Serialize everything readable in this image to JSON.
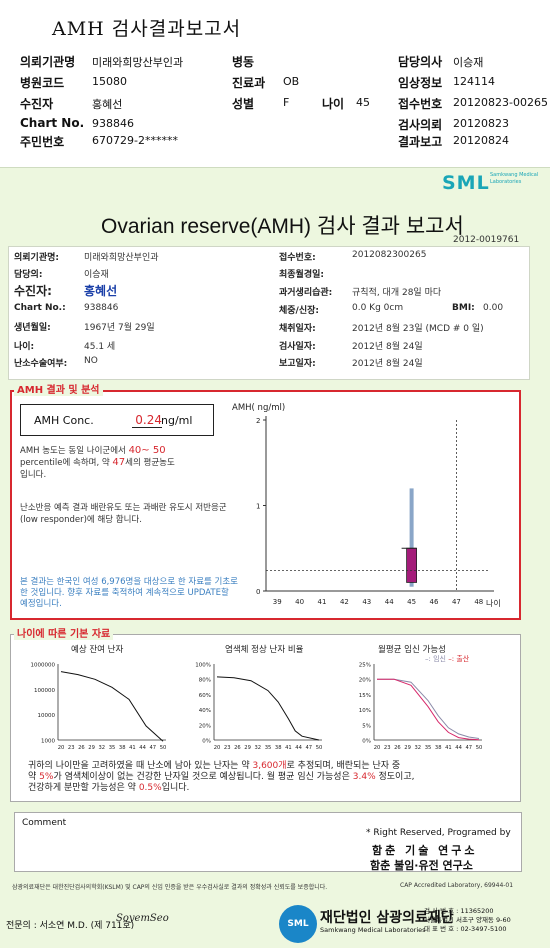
{
  "header": {
    "title": "AMH 검사결과보고서",
    "rows": [
      {
        "l1": "의뢰기관명",
        "v1": "미래와희망산부인과",
        "l2": "병동",
        "v2": "",
        "l3": "담당의사",
        "v3": "이승재"
      },
      {
        "l1": "병원코드",
        "v1": "15080",
        "l2": "진료과",
        "v2": "OB",
        "l3": "임상정보",
        "v3": "124114"
      },
      {
        "l1": "수진자",
        "v1": "홍혜선",
        "l2": "성별",
        "v2": "F",
        "l2b": "나이",
        "v2b": "45",
        "l3": "접수번호",
        "v3": "20120823-00265"
      },
      {
        "l1": "Chart No.",
        "v1": "938846",
        "l2": "",
        "v2": "",
        "l3": "검사의뢰",
        "v3": "20120823"
      },
      {
        "l1": "주민번호",
        "v1": "670729-2******",
        "l2": "",
        "v2": "",
        "l3": "결과보고",
        "v3": "20120824"
      }
    ]
  },
  "sheet": {
    "logo": "SML",
    "logo_sub": "Samkwang Medical Laboratories",
    "title": "Ovarian reserve(AMH) 검사 결과 보고서",
    "report_no": "2012-0019761"
  },
  "info": {
    "left": [
      {
        "label": "의뢰기관명:",
        "value": "미래와희망산부인과"
      },
      {
        "label": "담당의:",
        "value": "이승재"
      },
      {
        "label": "수진자:",
        "value": "홍혜선"
      },
      {
        "label": "Chart No.:",
        "value": "938846"
      },
      {
        "label": "생년월일:",
        "value": "1967년 7월 29일"
      },
      {
        "label": "나이:",
        "value": "45.1 세"
      },
      {
        "label": "난소수술여부:",
        "value": "NO"
      }
    ],
    "right": [
      {
        "label": "접수번호:",
        "value": "2012082300265"
      },
      {
        "label": "최종월경일:",
        "value": ""
      },
      {
        "label": "과거생리습관:",
        "value": "규칙적, 대개   28일 마다"
      },
      {
        "label": "체중/신장:",
        "value": "0.0  Kg        0cm"
      },
      {
        "label": "채취일자:",
        "value": "2012년 8월 23일   (MCD # 0 일)"
      },
      {
        "label": "검사일자:",
        "value": "2012년 8월 24일"
      },
      {
        "label": "보고일자:",
        "value": "2012년 8월 24일"
      }
    ],
    "bmi_label": "BMI:",
    "bmi_value": "0.00"
  },
  "amh": {
    "section_label": "AMH 결과 및 분석",
    "conc_label": "AMH Conc.",
    "conc_value": "0.24",
    "conc_unit": "ng/ml",
    "pcl_text1": "AMH 농도는 동일 나이군에서",
    "pcl_range": "40~ 50",
    "pcl_text2": "percentile에 속하며, 약",
    "pcl_age": "47",
    "pcl_text3": "세의 평균농도",
    "pcl_text4": "입니다.",
    "resp_text": "난소반응 예측 결과 배란유도 또는 과배란 유도시 저반응군 (low responder)에 해당 합니다.",
    "notice_text": "본 결과는 한국인 여성 6,976명을 대상으로 한 자료를 기초로 한 것입니다. 향후 자료를 축적하여 계속적으로 UPDATE할 예정입니다."
  },
  "age_section": {
    "label": "나이에 따른 기본 자료",
    "c1_title": "예상 잔여 난자",
    "c2_title": "염색체 정상 난자 비율",
    "c3_title": "월평균 임신 가능성",
    "legend_a": "임신",
    "legend_b": "출산",
    "summary_1": "귀하의 나이만을 고려하였을 때 난소에 남아 있는 난자는 약",
    "summary_eggs": "3,600개",
    "summary_2": "로 추정되며, 배란되는 난자 중",
    "summary_3": "약",
    "summary_pct1": "5%",
    "summary_4": "가 염색체이상이 없는 건강한 난자일 것으로 예상됩니다. 월 평균 임신 가능성은",
    "summary_pct2": "3.4%",
    "summary_5": "정도이고,",
    "summary_6": "건강하게 분만할 가능성은 약",
    "summary_pct3": "0.5%",
    "summary_7": "입니다."
  },
  "comment": {
    "label": "Comment",
    "rights": "* Right Reserved, Programed by",
    "lab1": "함춘 기술 연구소",
    "lab2": "함춘 불임·유전 연구소"
  },
  "footer": {
    "cert": "삼광의료재단은 대한진단검사의학회(KSLM) 및 CAP의 신임 인증을 받은 우수검사실로 결과의 정확성과 신뢰도를 보증합니다.",
    "cap": "CAP  Accredited  Laboratory,  69944-01",
    "doctor": "전문의 : 서소연 M.D. (제 711호)",
    "signature": "SoyemSeo",
    "foot_logo": "SML",
    "foot_name": "재단법인 삼광의료재단",
    "foot_name_en": "Samkwang Medical Laboratories",
    "contact_1": "검 사 번 호 : 11365200",
    "contact_2": "서울특별시 서초구 양재동 9-60",
    "contact_3": "대 표 번 호 : 02-3497-5100"
  },
  "chart_data": [
    {
      "type": "scatter",
      "title": "",
      "ylabel": "AMH( ng/ml)",
      "xlabel": "나이",
      "x_ticks": [
        39,
        40,
        41,
        42,
        43,
        44,
        45,
        46,
        47,
        48
      ],
      "y_ticks": [
        0,
        1,
        2
      ],
      "ylim": [
        0,
        2
      ],
      "range_bar": {
        "x": 45,
        "low": 0.05,
        "high": 1.2
      },
      "box": {
        "x": 45,
        "low": 0.1,
        "high": 0.5
      },
      "patient": {
        "age": 45,
        "amh": 0.24
      },
      "equivalent_age": 47
    },
    {
      "type": "line",
      "title": "예상 잔여 난자",
      "y_ticks": [
        "1000000",
        "100000",
        "10000",
        "1000"
      ],
      "x_ticks": [
        20,
        23,
        26,
        29,
        32,
        35,
        38,
        41,
        44,
        47,
        50
      ],
      "log_scale": true,
      "x": [
        20,
        25,
        30,
        35,
        40,
        45,
        50
      ],
      "y": [
        500000,
        380000,
        250000,
        120000,
        40000,
        3600,
        900
      ]
    },
    {
      "type": "line",
      "title": "염색체 정상 난자 비율",
      "y_ticks": [
        "100%",
        "80%",
        "60%",
        "40%",
        "20%",
        "0%"
      ],
      "x_ticks": [
        20,
        23,
        26,
        29,
        32,
        35,
        38,
        41,
        44,
        47,
        50
      ],
      "x": [
        20,
        25,
        30,
        35,
        38,
        41,
        43,
        45,
        50
      ],
      "y": [
        83,
        82,
        78,
        65,
        50,
        28,
        12,
        5,
        0
      ]
    },
    {
      "type": "line",
      "title": "월평균 임신 가능성",
      "y_ticks": [
        "25%",
        "20%",
        "15%",
        "10%",
        "5%",
        "0%"
      ],
      "x_ticks": [
        20,
        23,
        26,
        29,
        32,
        35,
        38,
        41,
        44,
        47,
        50
      ],
      "series": [
        {
          "name": "임신",
          "x": [
            20,
            25,
            30,
            35,
            38,
            41,
            44,
            47,
            50
          ],
          "y": [
            20,
            20,
            19,
            13,
            8,
            4,
            2,
            1,
            0.5
          ]
        },
        {
          "name": "출산",
          "x": [
            20,
            25,
            30,
            35,
            38,
            41,
            44,
            47,
            50
          ],
          "y": [
            20,
            20,
            18,
            11,
            6,
            2.5,
            0.8,
            0.3,
            0.1
          ]
        }
      ]
    }
  ]
}
